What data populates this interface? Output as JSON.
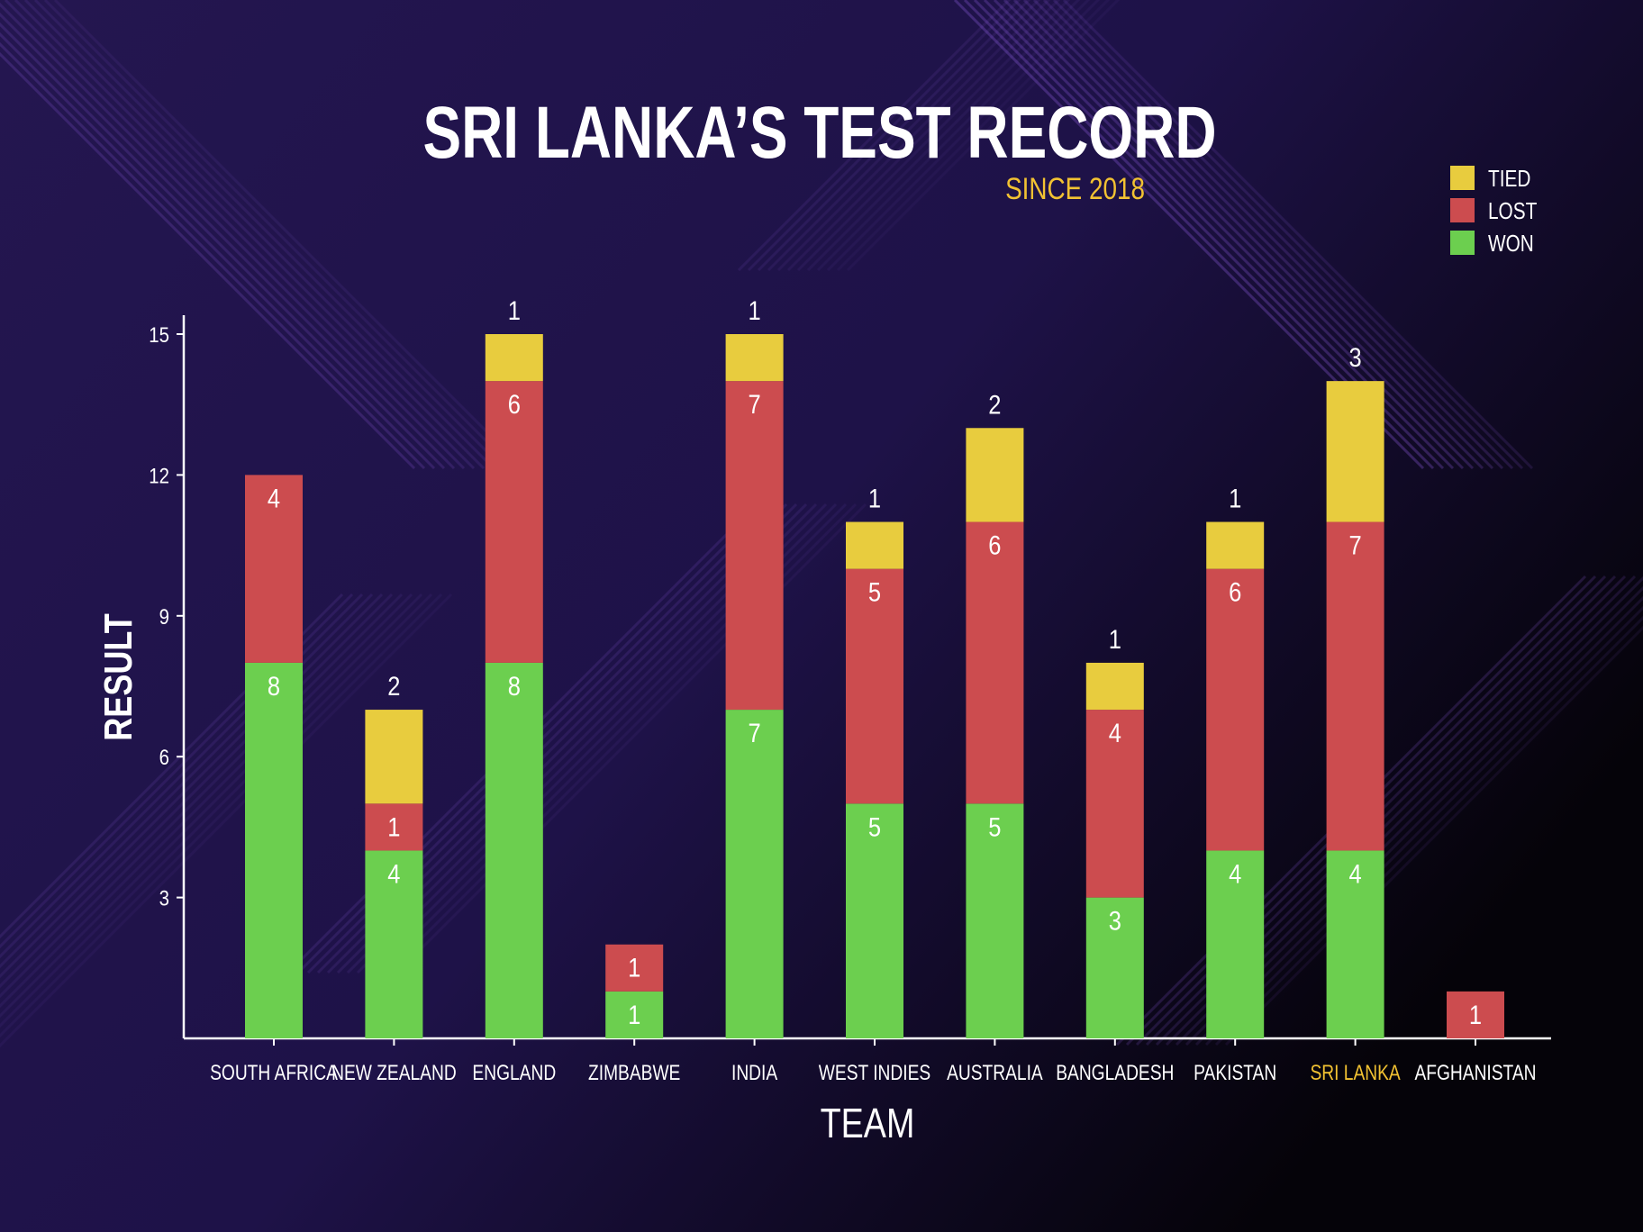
{
  "chart_data": {
    "type": "bar",
    "stacked": true,
    "title": "SRI LANKA’S TEST RECORD",
    "subtitle": "SINCE 2018",
    "xlabel": "TEAM",
    "ylabel": "RESULT",
    "ylim": [
      0,
      15
    ],
    "yticks": [
      3,
      6,
      9,
      12,
      15
    ],
    "grid": false,
    "legend_position": "top-right",
    "highlight_category": "SRI LANKA",
    "categories": [
      "SOUTH AFRICA",
      "NEW ZEALAND",
      "ENGLAND",
      "ZIMBABWE",
      "INDIA",
      "WEST INDIES",
      "AUSTRALIA",
      "BANGLADESH",
      "PAKISTAN",
      "SRI LANKA",
      "AFGHANISTAN"
    ],
    "series": [
      {
        "name": "WON",
        "color": "#6ccf4f",
        "values": [
          8,
          4,
          8,
          1,
          7,
          5,
          5,
          3,
          4,
          4,
          0
        ]
      },
      {
        "name": "LOST",
        "color": "#cc4c4f",
        "values": [
          4,
          1,
          6,
          1,
          7,
          5,
          6,
          4,
          6,
          7,
          1
        ]
      },
      {
        "name": "TIED",
        "color": "#e8cc3e",
        "values": [
          0,
          2,
          1,
          0,
          1,
          1,
          2,
          1,
          1,
          3,
          0
        ]
      }
    ]
  },
  "colors": {
    "background_start": "#231650",
    "background_end": "#050309",
    "text": "#ffffff",
    "accent": "#f2c232"
  }
}
